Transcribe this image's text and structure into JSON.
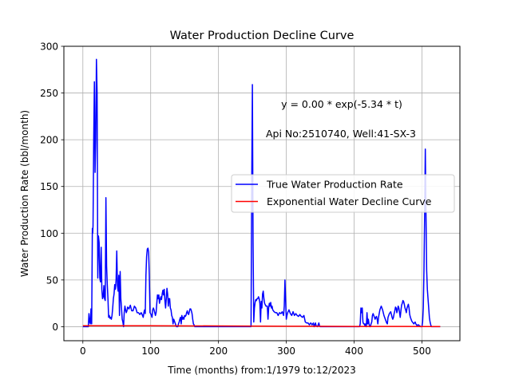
{
  "chart_data": {
    "type": "line",
    "title": "Water Production Decline Curve",
    "xlabel": "Time (months) from:1/1979 to:12/2023",
    "ylabel": "Water Production Rate (bbl/month)",
    "xlim": [
      -28,
      556
    ],
    "ylim": [
      -15,
      300
    ],
    "xticks": [
      0,
      100,
      200,
      300,
      400,
      500
    ],
    "yticks": [
      0,
      50,
      100,
      150,
      200,
      250,
      300
    ],
    "grid": true,
    "legend_position": "center-right",
    "annotations": [
      "y = 0.00 * exp(-5.34 * t)",
      "Api No:2510740, Well:41-SX-3"
    ],
    "series": [
      {
        "name": "True Water Production Rate",
        "color": "#0000ff",
        "points": [
          [
            0,
            0
          ],
          [
            8,
            0
          ],
          [
            9,
            14
          ],
          [
            10,
            5
          ],
          [
            11,
            3
          ],
          [
            12,
            19
          ],
          [
            13,
            3
          ],
          [
            14,
            105
          ],
          [
            14.5,
            100
          ],
          [
            15,
            108
          ],
          [
            16,
            200
          ],
          [
            17,
            262
          ],
          [
            18,
            165
          ],
          [
            19,
            200
          ],
          [
            20,
            286
          ],
          [
            21,
            250
          ],
          [
            22,
            52
          ],
          [
            23,
            97
          ],
          [
            24,
            90
          ],
          [
            25,
            52
          ],
          [
            26,
            48
          ],
          [
            27,
            85
          ],
          [
            28,
            40
          ],
          [
            29,
            30
          ],
          [
            30,
            32
          ],
          [
            31,
            44
          ],
          [
            32,
            30
          ],
          [
            33,
            28
          ],
          [
            34,
            138
          ],
          [
            35,
            65
          ],
          [
            36,
            45
          ],
          [
            37,
            30
          ],
          [
            38,
            10
          ],
          [
            39,
            12
          ],
          [
            40,
            9
          ],
          [
            41,
            10
          ],
          [
            42,
            8
          ],
          [
            43,
            12
          ],
          [
            44,
            20
          ],
          [
            45,
            30
          ],
          [
            46,
            35
          ],
          [
            47,
            45
          ],
          [
            48,
            40
          ],
          [
            49,
            50
          ],
          [
            50,
            81
          ],
          [
            51,
            44
          ],
          [
            52,
            38
          ],
          [
            53,
            55
          ],
          [
            54,
            12
          ],
          [
            55,
            59
          ],
          [
            56,
            30
          ],
          [
            57,
            20
          ],
          [
            58,
            8
          ],
          [
            59,
            5
          ],
          [
            60,
            0
          ],
          [
            61,
            15
          ],
          [
            62,
            22
          ],
          [
            63,
            18
          ],
          [
            64,
            15
          ],
          [
            65,
            17
          ],
          [
            66,
            21
          ],
          [
            68,
            19
          ],
          [
            70,
            23
          ],
          [
            72,
            17
          ],
          [
            74,
            17
          ],
          [
            76,
            22
          ],
          [
            78,
            20
          ],
          [
            80,
            15
          ],
          [
            82,
            15
          ],
          [
            84,
            13
          ],
          [
            86,
            15
          ],
          [
            88,
            12
          ],
          [
            89,
            10
          ],
          [
            90,
            15
          ],
          [
            91,
            18
          ],
          [
            92,
            14
          ],
          [
            93,
            55
          ],
          [
            94,
            75
          ],
          [
            95,
            83
          ],
          [
            96,
            84
          ],
          [
            97,
            80
          ],
          [
            98,
            55
          ],
          [
            99,
            15
          ],
          [
            100,
            14
          ],
          [
            101,
            12
          ],
          [
            102,
            10
          ],
          [
            103,
            18
          ],
          [
            104,
            20
          ],
          [
            105,
            18
          ],
          [
            106,
            15
          ],
          [
            107,
            12
          ],
          [
            108,
            15
          ],
          [
            109,
            25
          ],
          [
            110,
            34
          ],
          [
            111,
            30
          ],
          [
            112,
            34
          ],
          [
            113,
            25
          ],
          [
            114,
            29
          ],
          [
            115,
            32
          ],
          [
            116,
            29
          ],
          [
            117,
            35
          ],
          [
            118,
            39
          ],
          [
            119,
            34
          ],
          [
            120,
            40
          ],
          [
            121,
            28
          ],
          [
            122,
            20
          ],
          [
            123,
            30
          ],
          [
            124,
            41
          ],
          [
            125,
            35
          ],
          [
            126,
            22
          ],
          [
            127,
            30
          ],
          [
            128,
            30
          ],
          [
            129,
            20
          ],
          [
            130,
            18
          ],
          [
            131,
            12
          ],
          [
            132,
            10
          ],
          [
            133,
            3
          ],
          [
            134,
            8
          ],
          [
            135,
            6
          ],
          [
            136,
            4
          ],
          [
            137,
            2
          ],
          [
            138,
            0
          ],
          [
            140,
            0
          ],
          [
            141,
            3
          ],
          [
            142,
            5
          ],
          [
            143,
            8
          ],
          [
            144,
            10
          ],
          [
            145,
            3
          ],
          [
            146,
            12
          ],
          [
            147,
            8
          ],
          [
            148,
            10
          ],
          [
            149,
            8
          ],
          [
            150,
            12
          ],
          [
            151,
            11
          ],
          [
            152,
            12
          ],
          [
            153,
            15
          ],
          [
            154,
            17
          ],
          [
            155,
            14
          ],
          [
            156,
            13
          ],
          [
            157,
            16
          ],
          [
            158,
            19
          ],
          [
            159,
            19
          ],
          [
            160,
            17
          ],
          [
            161,
            14
          ],
          [
            162,
            8
          ],
          [
            163,
            3
          ],
          [
            164,
            2
          ],
          [
            165,
            0
          ],
          [
            248,
            0
          ],
          [
            249,
            150
          ],
          [
            250,
            259
          ],
          [
            251,
            90
          ],
          [
            252,
            5
          ],
          [
            253,
            20
          ],
          [
            254,
            26
          ],
          [
            255,
            29
          ],
          [
            256,
            28
          ],
          [
            257,
            30
          ],
          [
            258,
            30
          ],
          [
            259,
            32
          ],
          [
            260,
            30
          ],
          [
            261,
            25
          ],
          [
            262,
            5
          ],
          [
            263,
            27
          ],
          [
            264,
            20
          ],
          [
            265,
            35
          ],
          [
            266,
            38
          ],
          [
            267,
            30
          ],
          [
            268,
            25
          ],
          [
            270,
            22
          ],
          [
            272,
            22
          ],
          [
            273,
            8
          ],
          [
            274,
            20
          ],
          [
            275,
            25
          ],
          [
            276,
            22
          ],
          [
            277,
            26
          ],
          [
            278,
            20
          ],
          [
            279,
            22
          ],
          [
            280,
            18
          ],
          [
            282,
            16
          ],
          [
            284,
            15
          ],
          [
            286,
            15
          ],
          [
            288,
            12
          ],
          [
            290,
            15
          ],
          [
            292,
            14
          ],
          [
            294,
            16
          ],
          [
            296,
            12
          ],
          [
            297,
            22
          ],
          [
            298,
            50
          ],
          [
            299,
            28
          ],
          [
            300,
            8
          ],
          [
            301,
            12
          ],
          [
            302,
            15
          ],
          [
            304,
            18
          ],
          [
            306,
            14
          ],
          [
            308,
            12
          ],
          [
            310,
            16
          ],
          [
            312,
            12
          ],
          [
            314,
            14
          ],
          [
            316,
            12
          ],
          [
            318,
            11
          ],
          [
            320,
            13
          ],
          [
            322,
            11
          ],
          [
            324,
            10
          ],
          [
            326,
            12
          ],
          [
            328,
            5
          ],
          [
            330,
            4
          ],
          [
            332,
            4
          ],
          [
            334,
            2
          ],
          [
            336,
            4
          ],
          [
            338,
            2
          ],
          [
            340,
            4
          ],
          [
            341,
            0
          ],
          [
            342,
            2
          ],
          [
            343,
            4
          ],
          [
            344,
            1
          ],
          [
            346,
            0
          ],
          [
            347,
            2
          ],
          [
            348,
            4
          ],
          [
            349,
            1
          ],
          [
            350,
            0
          ],
          [
            408,
            0
          ],
          [
            409,
            3
          ],
          [
            410,
            20
          ],
          [
            411,
            15
          ],
          [
            412,
            20
          ],
          [
            413,
            5
          ],
          [
            414,
            3
          ],
          [
            415,
            3
          ],
          [
            416,
            1
          ],
          [
            417,
            3
          ],
          [
            418,
            0
          ],
          [
            419,
            15
          ],
          [
            420,
            3
          ],
          [
            421,
            8
          ],
          [
            422,
            3
          ],
          [
            423,
            0
          ],
          [
            424,
            0
          ],
          [
            425,
            3
          ],
          [
            426,
            5
          ],
          [
            427,
            12
          ],
          [
            428,
            14
          ],
          [
            429,
            12
          ],
          [
            430,
            10
          ],
          [
            431,
            8
          ],
          [
            432,
            10
          ],
          [
            433,
            11
          ],
          [
            434,
            8
          ],
          [
            435,
            3
          ],
          [
            436,
            10
          ],
          [
            437,
            14
          ],
          [
            438,
            18
          ],
          [
            439,
            20
          ],
          [
            440,
            22
          ],
          [
            441,
            20
          ],
          [
            442,
            18
          ],
          [
            443,
            15
          ],
          [
            444,
            12
          ],
          [
            445,
            10
          ],
          [
            446,
            8
          ],
          [
            447,
            6
          ],
          [
            448,
            4
          ],
          [
            449,
            3
          ],
          [
            450,
            10
          ],
          [
            451,
            12
          ],
          [
            452,
            14
          ],
          [
            453,
            15
          ],
          [
            454,
            16
          ],
          [
            455,
            13
          ],
          [
            456,
            10
          ],
          [
            457,
            8
          ],
          [
            458,
            10
          ],
          [
            459,
            14
          ],
          [
            460,
            17
          ],
          [
            461,
            21
          ],
          [
            462,
            20
          ],
          [
            463,
            15
          ],
          [
            464,
            18
          ],
          [
            465,
            22
          ],
          [
            466,
            20
          ],
          [
            467,
            15
          ],
          [
            468,
            10
          ],
          [
            469,
            17
          ],
          [
            470,
            23
          ],
          [
            471,
            25
          ],
          [
            472,
            28
          ],
          [
            473,
            27
          ],
          [
            474,
            24
          ],
          [
            475,
            20
          ],
          [
            476,
            18
          ],
          [
            477,
            15
          ],
          [
            478,
            20
          ],
          [
            479,
            22
          ],
          [
            480,
            24
          ],
          [
            481,
            20
          ],
          [
            482,
            13
          ],
          [
            483,
            10
          ],
          [
            484,
            8
          ],
          [
            485,
            6
          ],
          [
            486,
            5
          ],
          [
            487,
            4
          ],
          [
            488,
            3
          ],
          [
            489,
            4
          ],
          [
            490,
            5
          ],
          [
            491,
            3
          ],
          [
            492,
            2
          ],
          [
            493,
            1
          ],
          [
            494,
            2
          ],
          [
            495,
            2
          ],
          [
            496,
            1
          ],
          [
            497,
            1
          ],
          [
            498,
            0
          ],
          [
            500,
            0
          ],
          [
            501,
            5
          ],
          [
            502,
            20
          ],
          [
            503,
            60
          ],
          [
            504,
            120
          ],
          [
            505,
            190
          ],
          [
            506,
            120
          ],
          [
            507,
            60
          ],
          [
            508,
            40
          ],
          [
            509,
            30
          ],
          [
            510,
            20
          ],
          [
            511,
            10
          ],
          [
            512,
            5
          ],
          [
            513,
            2
          ],
          [
            514,
            0
          ],
          [
            527,
            0
          ]
        ]
      },
      {
        "name": "Exponential Water Decline Curve",
        "color": "#ff0000",
        "points": [
          [
            0,
            1
          ],
          [
            100,
            1
          ],
          [
            200,
            0.8
          ],
          [
            300,
            0.5
          ],
          [
            400,
            0.3
          ],
          [
            500,
            0.2
          ],
          [
            527,
            0.2
          ]
        ]
      }
    ]
  }
}
